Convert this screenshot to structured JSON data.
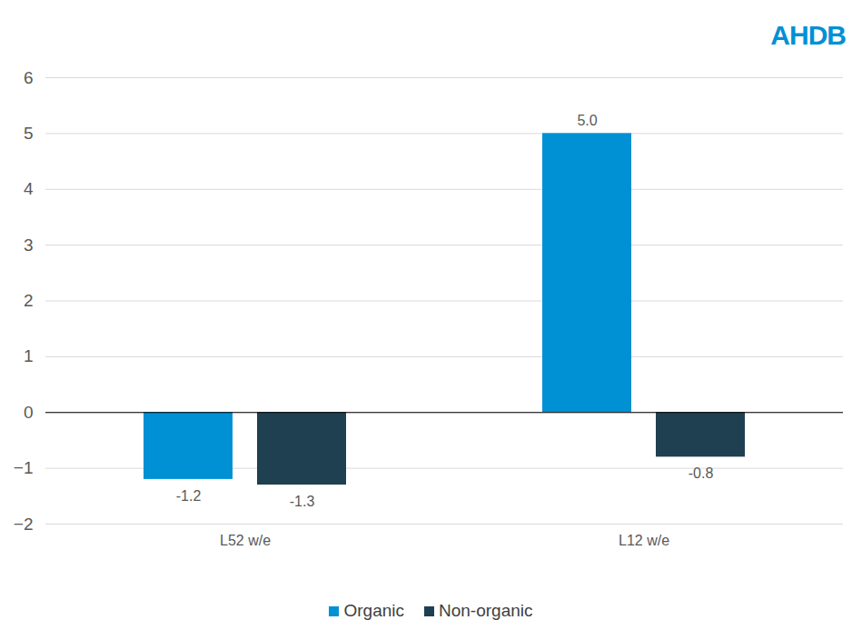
{
  "chart_data": {
    "type": "bar",
    "categories": [
      "L52 w/e",
      "L12 w/e"
    ],
    "series": [
      {
        "name": "Organic",
        "color": "#0090d4",
        "values": [
          -1.2,
          5.0
        ],
        "value_labels": [
          "-1.2",
          "5.0"
        ]
      },
      {
        "name": "Non-organic",
        "color": "#1f4050",
        "values": [
          -1.3,
          -0.8
        ],
        "value_labels": [
          "-1.3",
          "-0.8"
        ]
      }
    ],
    "ylim": [
      -2,
      6
    ],
    "yticks": [
      -2,
      -1,
      0,
      1,
      2,
      3,
      4,
      5,
      6
    ],
    "grid": true,
    "data_labels": true,
    "legend": "bottom",
    "annotations": [
      "AHDB"
    ]
  }
}
